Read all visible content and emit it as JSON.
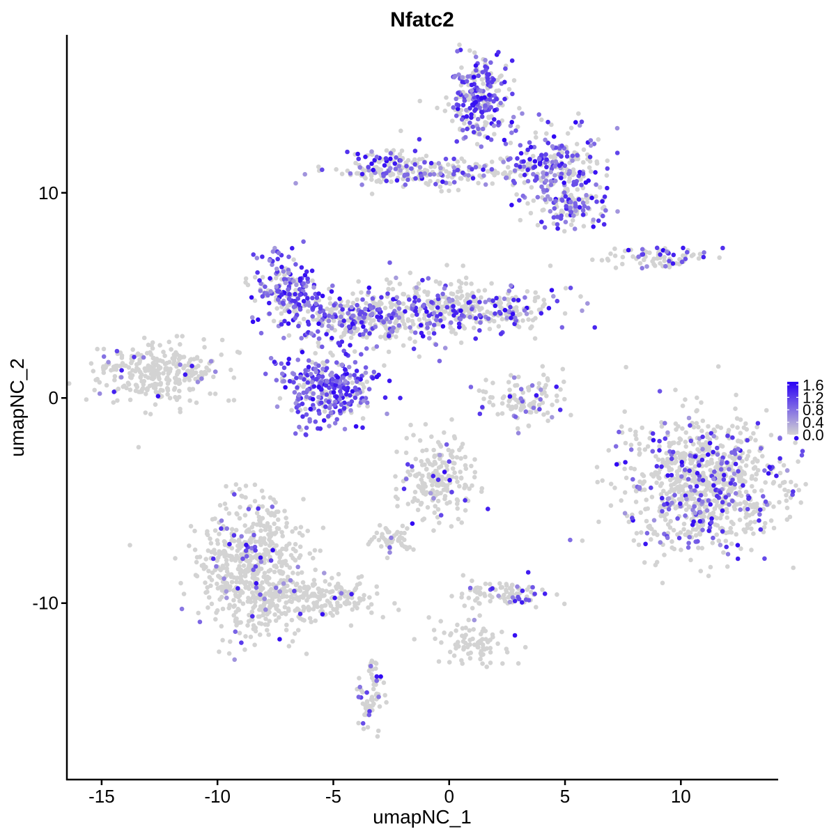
{
  "chart_data": {
    "type": "scatter",
    "title": "Nfatc2",
    "xlabel": "umapNC_1",
    "ylabel": "umapNC_2",
    "xlim": [
      -16.5,
      14.2
    ],
    "ylim": [
      -18.6,
      17.7
    ],
    "x_ticks": [
      -15,
      -10,
      -5,
      0,
      5,
      10
    ],
    "x_tick_labels": [
      "-15",
      "-10",
      "-5",
      "0",
      "5",
      "10"
    ],
    "y_ticks": [
      -10,
      0,
      10
    ],
    "y_tick_labels": [
      "-10",
      "0",
      "10"
    ],
    "grid": false,
    "legend_position": "right",
    "color_scale": {
      "low": "#d3d3d3",
      "high": "#2a00f5",
      "min": 0.0,
      "max": 1.7,
      "breaks": [
        1.6,
        1.2,
        0.8,
        0.4,
        0.0
      ],
      "break_labels": [
        "1.6",
        "1.2",
        "0.8",
        "0.4",
        "0.0"
      ]
    },
    "clusters": [
      {
        "name": "cluster-top-right-arm",
        "cx": 1.3,
        "cy": 14.5,
        "sx": 0.7,
        "sy": 1.0,
        "n": 260,
        "expr_frac": 0.55
      },
      {
        "name": "cluster-top-band",
        "cx": -0.5,
        "cy": 11.0,
        "sx": 2.4,
        "sy": 0.35,
        "n": 200,
        "expr_frac": 0.3
      },
      {
        "name": "cluster-top-right-lobe",
        "cx": 4.5,
        "cy": 11.3,
        "sx": 1.1,
        "sy": 0.9,
        "n": 220,
        "expr_frac": 0.5
      },
      {
        "name": "cluster-top-right-tip",
        "cx": 5.3,
        "cy": 9.4,
        "sx": 0.8,
        "sy": 0.55,
        "n": 120,
        "expr_frac": 0.5
      },
      {
        "name": "cluster-top-left-head",
        "cx": -2.7,
        "cy": 11.3,
        "sx": 0.7,
        "sy": 0.45,
        "n": 90,
        "expr_frac": 0.35
      },
      {
        "name": "cluster-left-lobe",
        "cx": -7.0,
        "cy": 5.3,
        "sx": 0.7,
        "sy": 0.8,
        "n": 200,
        "expr_frac": 0.7
      },
      {
        "name": "cluster-center-band",
        "cx": -4.3,
        "cy": 3.8,
        "sx": 1.3,
        "sy": 0.6,
        "n": 200,
        "expr_frac": 0.55
      },
      {
        "name": "cluster-center-arm",
        "cx": -1.4,
        "cy": 4.3,
        "sx": 1.6,
        "sy": 0.8,
        "n": 260,
        "expr_frac": 0.35
      },
      {
        "name": "cluster-center-right",
        "cx": 1.5,
        "cy": 4.3,
        "sx": 1.5,
        "sy": 0.5,
        "n": 220,
        "expr_frac": 0.3
      },
      {
        "name": "cluster-bottom-loop",
        "cx": -5.2,
        "cy": 0.5,
        "sx": 1.1,
        "sy": 0.9,
        "n": 320,
        "expr_frac": 0.8
      },
      {
        "name": "cluster-left-island",
        "cx": -12.6,
        "cy": 1.2,
        "sx": 1.4,
        "sy": 0.75,
        "n": 300,
        "expr_frac": 0.04
      },
      {
        "name": "cluster-small-center",
        "cx": 3.1,
        "cy": 0.0,
        "sx": 0.9,
        "sy": 0.7,
        "n": 110,
        "expr_frac": 0.15
      },
      {
        "name": "cluster-right-small-top",
        "cx": 8.8,
        "cy": 6.9,
        "sx": 1.2,
        "sy": 0.3,
        "n": 80,
        "expr_frac": 0.25
      },
      {
        "name": "cluster-right-large",
        "cx": 11.0,
        "cy": -4.2,
        "sx": 1.7,
        "sy": 1.6,
        "n": 900,
        "expr_frac": 0.22
      },
      {
        "name": "cluster-middle-lower",
        "cx": -0.4,
        "cy": -4.0,
        "sx": 0.8,
        "sy": 0.9,
        "n": 200,
        "expr_frac": 0.08
      },
      {
        "name": "cluster-bottom-left-large",
        "cx": -8.5,
        "cy": -8.4,
        "sx": 1.1,
        "sy": 1.6,
        "n": 650,
        "expr_frac": 0.08
      },
      {
        "name": "cluster-bottom-left-tail",
        "cx": -5.5,
        "cy": -9.8,
        "sx": 1.2,
        "sy": 0.5,
        "n": 160,
        "expr_frac": 0.06
      },
      {
        "name": "cluster-bottom-small-a",
        "cx": -2.5,
        "cy": -6.8,
        "sx": 0.5,
        "sy": 0.3,
        "n": 50,
        "expr_frac": 0.05
      },
      {
        "name": "cluster-bottom-small-b",
        "cx": 2.5,
        "cy": -9.5,
        "sx": 0.9,
        "sy": 0.4,
        "n": 90,
        "expr_frac": 0.1
      },
      {
        "name": "cluster-bottom-strand",
        "cx": 1.2,
        "cy": -11.8,
        "sx": 1.0,
        "sy": 0.7,
        "n": 90,
        "expr_frac": 0.06
      },
      {
        "name": "cluster-bottom-tail",
        "cx": -3.4,
        "cy": -14.5,
        "sx": 0.3,
        "sy": 0.9,
        "n": 70,
        "expr_frac": 0.1
      }
    ]
  }
}
